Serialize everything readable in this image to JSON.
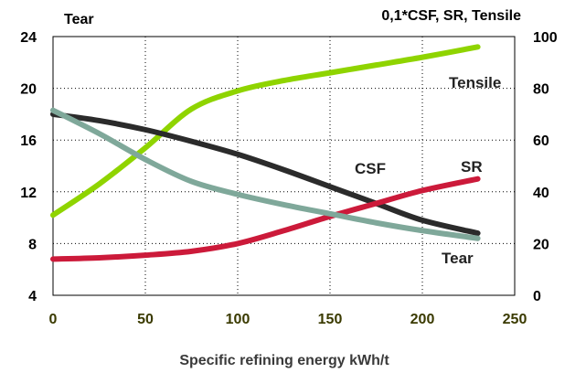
{
  "chart_data": {
    "type": "line",
    "left_axis_title": "Tear",
    "right_axis_title": "0,1*CSF, SR, Tensile",
    "xlabel": "Specific refining energy kWh/t",
    "xlim": [
      0,
      250
    ],
    "ylim_left": [
      4,
      24
    ],
    "ylim_right": [
      0,
      100
    ],
    "x_ticks": [
      "0",
      "50",
      "100",
      "150",
      "200",
      "250"
    ],
    "y_left_ticks": [
      "4",
      "8",
      "12",
      "16",
      "20",
      "24"
    ],
    "y_right_ticks": [
      "0",
      "20",
      "40",
      "60",
      "80",
      "100"
    ],
    "grid": true,
    "series": [
      {
        "name": "Tensile",
        "axis": "right",
        "color": "#8fd400",
        "x": [
          0,
          25,
          50,
          75,
          100,
          125,
          150,
          175,
          200,
          230
        ],
        "y": [
          31,
          43,
          57,
          72,
          79,
          83,
          86,
          89,
          92,
          96
        ]
      },
      {
        "name": "CSF",
        "axis": "right",
        "color": "#2b2b2b",
        "x": [
          0,
          25,
          50,
          75,
          100,
          125,
          150,
          175,
          200,
          230
        ],
        "y": [
          70,
          67.5,
          64,
          59.5,
          54.5,
          48.5,
          42,
          35.5,
          29,
          24
        ]
      },
      {
        "name": "SR",
        "axis": "right",
        "color": "#cc1a3a",
        "x": [
          0,
          25,
          50,
          75,
          100,
          125,
          150,
          175,
          200,
          230
        ],
        "y": [
          14,
          14.5,
          15.5,
          17,
          20,
          25,
          30.5,
          35.5,
          40.5,
          45
        ]
      },
      {
        "name": "Tear",
        "axis": "left",
        "color": "#7fa89a",
        "x": [
          0,
          25,
          50,
          75,
          100,
          125,
          150,
          175,
          200,
          230
        ],
        "y": [
          18.3,
          16.5,
          14.5,
          12.8,
          11.8,
          11.0,
          10.3,
          9.6,
          9.0,
          8.4
        ]
      }
    ]
  }
}
